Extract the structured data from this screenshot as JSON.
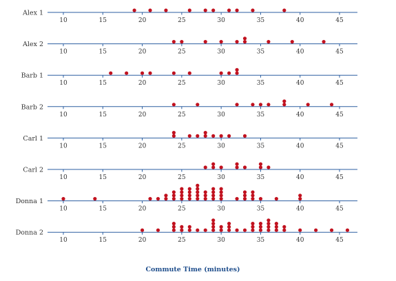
{
  "chart_data": {
    "type": "dotplot",
    "xlabel": "Commute Time (minutes)",
    "xlim": [
      8,
      47
    ],
    "ticks": [
      10,
      15,
      20,
      25,
      30,
      35,
      40,
      45
    ],
    "colors": {
      "axis": "#2b5ea0",
      "dot": "#c1121f",
      "label": "#333333",
      "xlabel": "#1f4e8c"
    },
    "series": [
      {
        "name": "Alex 1",
        "values": [
          19,
          21,
          23,
          26,
          28,
          29,
          31,
          32,
          34,
          38
        ]
      },
      {
        "name": "Alex 2",
        "values": [
          24,
          25,
          28,
          30,
          32,
          33,
          33,
          36,
          39,
          43
        ]
      },
      {
        "name": "Barb 1",
        "values": [
          16,
          18,
          20,
          21,
          24,
          26,
          30,
          31,
          32,
          32
        ]
      },
      {
        "name": "Barb 2",
        "values": [
          24,
          27,
          32,
          34,
          35,
          36,
          38,
          38,
          41,
          44
        ]
      },
      {
        "name": "Carl 1",
        "values": [
          24,
          24,
          26,
          27,
          28,
          28,
          29,
          30,
          31,
          33
        ]
      },
      {
        "name": "Carl 2",
        "values": [
          28,
          29,
          29,
          30,
          32,
          32,
          33,
          35,
          35,
          36
        ]
      },
      {
        "name": "Donna 1",
        "values": [
          10,
          14,
          21,
          22,
          23,
          23,
          24,
          24,
          24,
          25,
          25,
          25,
          25,
          26,
          26,
          26,
          26,
          27,
          27,
          27,
          27,
          27,
          28,
          28,
          28,
          29,
          29,
          29,
          29,
          30,
          30,
          30,
          30,
          32,
          33,
          33,
          33,
          34,
          34,
          34,
          35,
          37,
          40,
          40
        ]
      },
      {
        "name": "Donna 2",
        "values": [
          20,
          22,
          24,
          24,
          24,
          25,
          25,
          26,
          26,
          27,
          28,
          29,
          29,
          29,
          29,
          30,
          30,
          31,
          31,
          31,
          32,
          33,
          34,
          34,
          34,
          35,
          35,
          35,
          36,
          36,
          36,
          36,
          37,
          37,
          37,
          38,
          38,
          40,
          42,
          44,
          46
        ]
      }
    ]
  }
}
